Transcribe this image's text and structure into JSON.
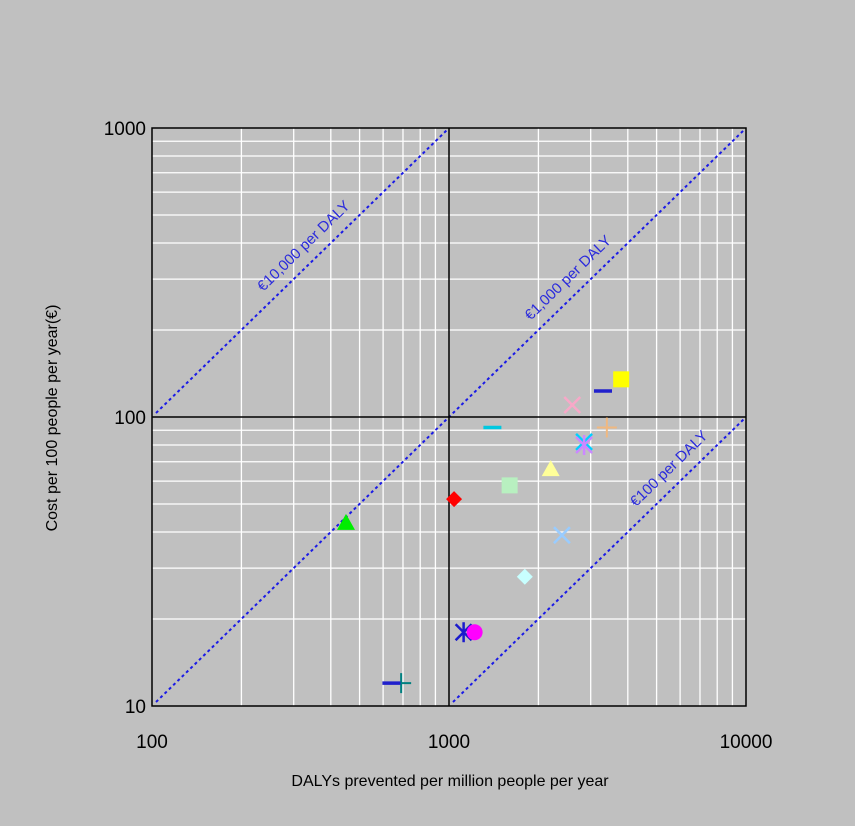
{
  "chart_data": {
    "type": "scatter",
    "x_scale": "log",
    "y_scale": "log",
    "xlim": [
      100,
      10000
    ],
    "ylim": [
      10,
      1000
    ],
    "xlabel": "DALYs prevented per million people per year",
    "ylabel": "Cost per 100 people per year(€)",
    "x_ticks": [
      "100",
      "1000",
      "10000"
    ],
    "y_ticks": [
      "10",
      "100",
      "1000"
    ],
    "grid": true,
    "background_color": "#c0c0c0",
    "reference_lines": [
      {
        "label": "€10,000 per DALY",
        "cost_per_daly": 10000,
        "color": "#1a1ae6"
      },
      {
        "label": "€1,000 per DALY",
        "cost_per_daly": 1000,
        "color": "#1a1ae6"
      },
      {
        "label": "€100 per DALY",
        "cost_per_daly": 100,
        "color": "#1a1ae6"
      }
    ],
    "points": [
      {
        "x": 450,
        "y": 43,
        "marker": "triangle",
        "color": "#00ee00"
      },
      {
        "x": 690,
        "y": 12,
        "marker": "plus",
        "color": "#008080"
      },
      {
        "x": 640,
        "y": 12,
        "marker": "dash",
        "color": "#2020cc"
      },
      {
        "x": 1040,
        "y": 52,
        "marker": "diamond",
        "color": "#ff0000"
      },
      {
        "x": 1120,
        "y": 18,
        "marker": "asterisk",
        "color": "#1a1acc"
      },
      {
        "x": 1220,
        "y": 18,
        "marker": "circle",
        "color": "#ff00ff"
      },
      {
        "x": 1400,
        "y": 92,
        "marker": "dash",
        "color": "#00c8e0"
      },
      {
        "x": 1600,
        "y": 58,
        "marker": "square",
        "color": "#b8f0c0"
      },
      {
        "x": 1800,
        "y": 28,
        "marker": "diamond",
        "color": "#c8ffff"
      },
      {
        "x": 2200,
        "y": 66,
        "marker": "triangle",
        "color": "#ffff99"
      },
      {
        "x": 2400,
        "y": 39,
        "marker": "x",
        "color": "#99ccff"
      },
      {
        "x": 2600,
        "y": 110,
        "marker": "x",
        "color": "#f8a8c8"
      },
      {
        "x": 2850,
        "y": 82,
        "marker": "x",
        "color": "#00d0ff"
      },
      {
        "x": 2850,
        "y": 80,
        "marker": "asterisk",
        "color": "#cc88ff"
      },
      {
        "x": 3300,
        "y": 123,
        "marker": "dash",
        "color": "#2020cc"
      },
      {
        "x": 3400,
        "y": 92,
        "marker": "plus",
        "color": "#f0b880"
      },
      {
        "x": 3800,
        "y": 135,
        "marker": "square",
        "color": "#ffff00"
      }
    ]
  }
}
